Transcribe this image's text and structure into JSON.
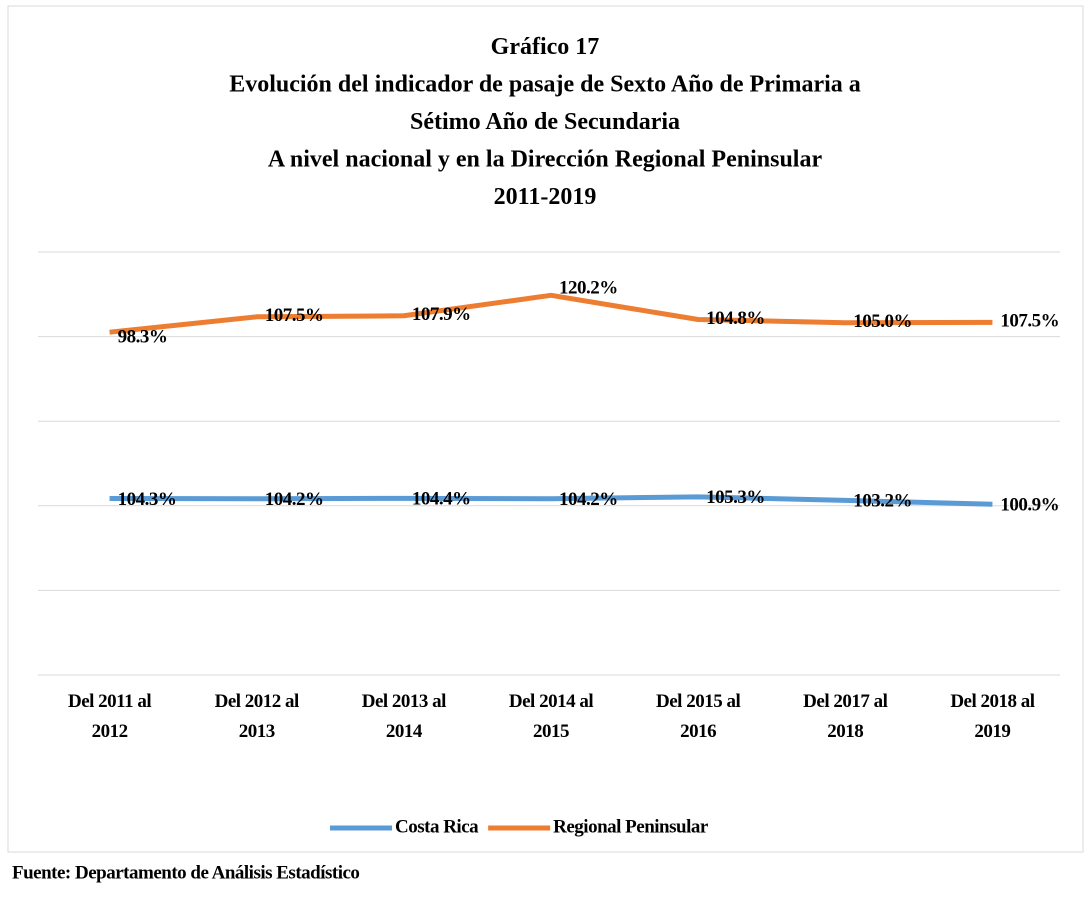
{
  "chart_data": {
    "type": "line",
    "stacked": true,
    "title": "Gráfico  17\nEvolución  del indicador  de pasaje de Sexto Año de Primaria  a\nSétimo Año  de Secundaria\nA nivel nacional  y en la  Dirección  Regional  Peninsular\n2011-2019",
    "categories": [
      "Del 2011 al\n2012",
      "Del 2012 al\n2013",
      "Del 2013 al\n2014",
      "Del 2014 al\n2015",
      "Del 2015 al\n2016",
      "Del 2017 al\n2018",
      "Del 2018 al\n2019"
    ],
    "series": [
      {
        "name": "Costa Rica",
        "color": "#5b9bd5",
        "values": [
          104.3,
          104.2,
          104.4,
          104.2,
          105.3,
          103.2,
          100.9
        ],
        "value_labels": [
          "104.3%",
          "104.2%",
          "104.4%",
          "104.2%",
          "105.3%",
          "103.2%",
          "100.9%"
        ]
      },
      {
        "name": "Regional Peninsular",
        "color": "#ed7d31",
        "values": [
          98.3,
          107.5,
          107.9,
          120.2,
          104.8,
          105.0,
          107.5
        ],
        "value_labels": [
          "98.3%",
          "107.5%",
          "107.9%",
          "120.2%",
          "104.8%",
          "105.0%",
          "107.5%"
        ]
      }
    ],
    "ylim": [
      0,
      250
    ],
    "yticks": [
      0,
      50,
      100,
      150,
      200,
      250
    ],
    "grid": true,
    "legend": "bottom",
    "source": "Fuente: Departamento de Análisis Estadístico"
  }
}
